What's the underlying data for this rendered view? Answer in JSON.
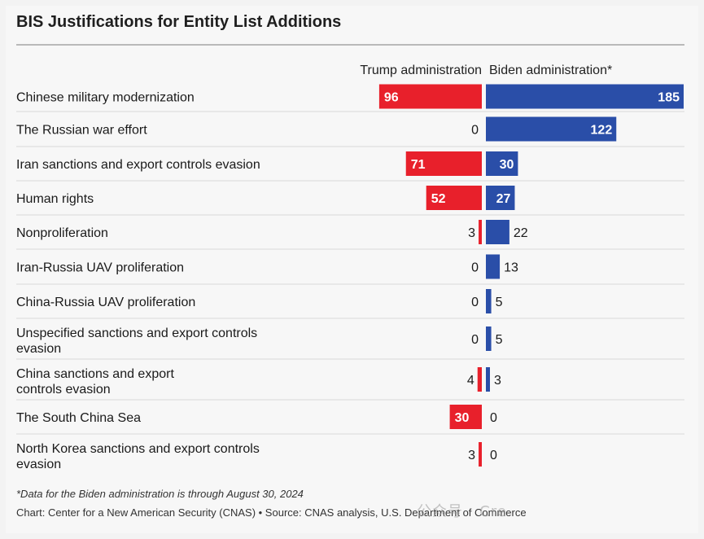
{
  "chart_data": {
    "type": "bar",
    "title": "BIS Justifications for Entity List Additions",
    "categories": [
      "Chinese military modernization",
      "The Russian war effort",
      "Iran sanctions and export controls evasion",
      "Human rights",
      "Nonproliferation",
      "Iran-Russia UAV proliferation",
      "China-Russia UAV proliferation",
      "Unspecified sanctions and export controls evasion",
      "China sanctions and export controls evasion",
      "The South China Sea",
      "North Korea sanctions and export controls evasion"
    ],
    "series": [
      {
        "name": "Trump administration",
        "color": "#e8202b",
        "values": [
          96,
          0,
          71,
          52,
          3,
          0,
          0,
          0,
          4,
          30,
          3
        ]
      },
      {
        "name": "Biden administration*",
        "color": "#2a4ea8",
        "values": [
          185,
          122,
          30,
          27,
          22,
          13,
          5,
          5,
          3,
          0,
          0
        ]
      }
    ],
    "xlim": [
      0,
      185
    ],
    "grid": false
  },
  "footnote": "*Data for the Biden administration is through August 30, 2024",
  "source": "Chart: Center for a New American Security (CNAS) • Source: CNAS analysis, U.S. Department of Commerce",
  "watermark": "公众号 · Cre"
}
